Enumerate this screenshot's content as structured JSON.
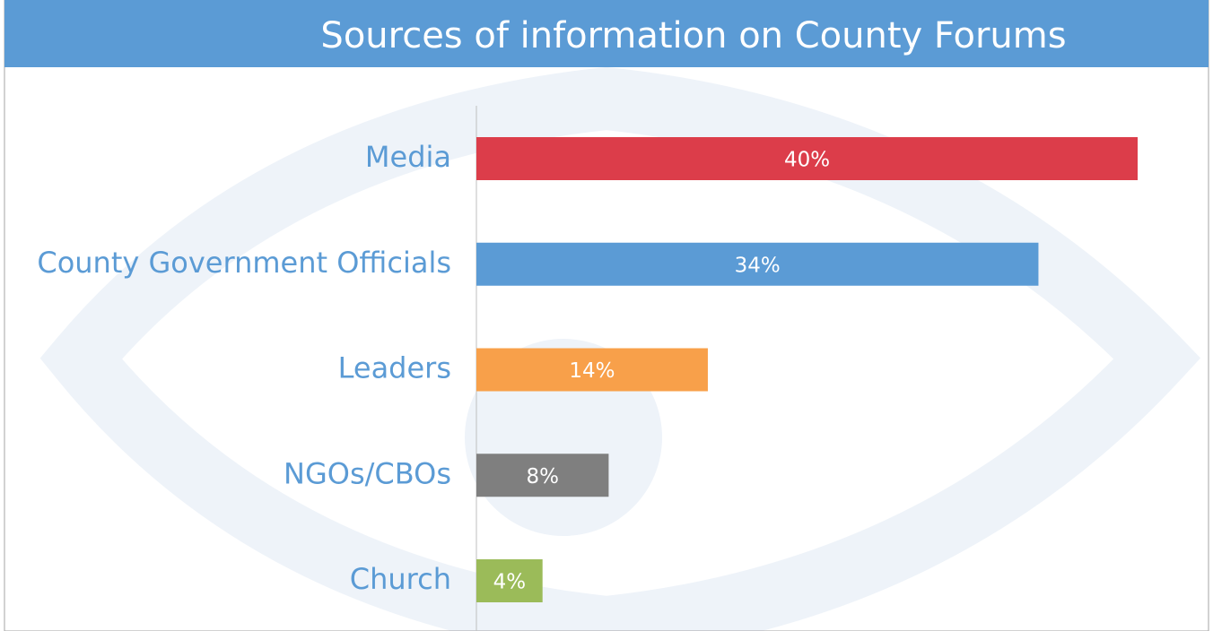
{
  "chart_data": {
    "type": "barh",
    "title": "Sources of information on County Forums",
    "categories": [
      "Media",
      "County Government Officials",
      "Leaders",
      "NGOs/CBOs",
      "Church"
    ],
    "values": [
      40,
      34,
      14,
      8,
      4
    ],
    "value_labels": [
      "40%",
      "34%",
      "14%",
      "8%",
      "4%"
    ],
    "colors": [
      "#dc3d4a",
      "#5b9bd5",
      "#f8a04a",
      "#7f7f7f",
      "#9bbb59"
    ]
  }
}
